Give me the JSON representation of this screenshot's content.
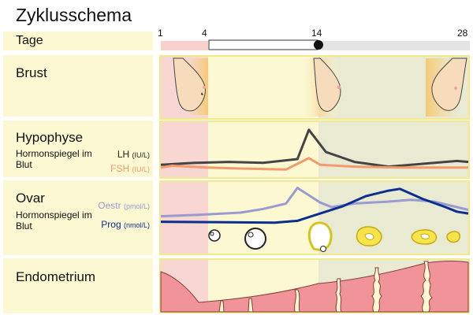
{
  "title": "Zyklusschema",
  "days": {
    "label": "Tage",
    "ticks": [
      "1",
      "4",
      "14",
      "28"
    ]
  },
  "rows": {
    "brust": {
      "label": "Brust"
    },
    "hypophyse": {
      "label": "Hypophyse",
      "sub": "Hormonspiegel im Blut",
      "lh": {
        "name": "LH",
        "unit": "(IU/L)",
        "color": "#444444"
      },
      "fsh": {
        "name": "FSH",
        "unit": "(IU/L)",
        "color": "#f09a6e"
      }
    },
    "ovar": {
      "label": "Ovar",
      "sub": "Hormonspiegel im Blut",
      "oestr": {
        "name": "Oestr",
        "unit": "(pmol/L)",
        "color": "#9b9bd0"
      },
      "prog": {
        "name": "Prog",
        "unit": "(nmol/L)",
        "color": "#0b2f8f"
      }
    },
    "endometrium": {
      "label": "Endometrium"
    }
  },
  "colors": {
    "menstruation": "#f8d6d2",
    "luteal": "#e9ead2",
    "panel": "#fbf8d2",
    "endometrium": "#f1949a"
  }
}
